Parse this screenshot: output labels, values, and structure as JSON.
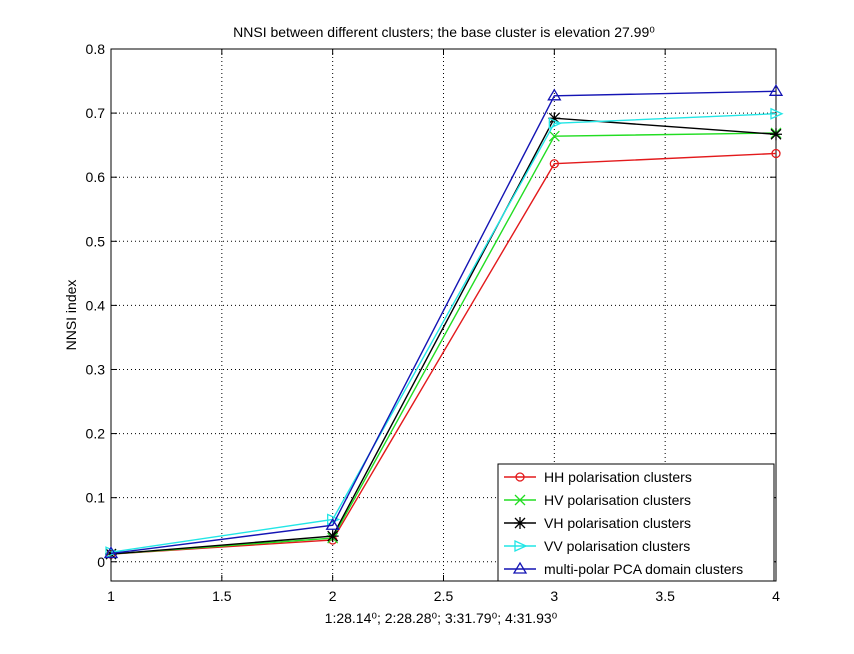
{
  "chart_data": {
    "type": "line",
    "title": "NNSI between different clusters; the base cluster is elevation 27.99⁰",
    "xlabel": "1:28.14⁰; 2:28.28⁰; 3:31.79⁰; 4:31.93⁰",
    "ylabel": "NNSI index",
    "x": [
      1,
      2,
      3,
      4
    ],
    "xlim": [
      1,
      4
    ],
    "ylim": [
      -0.03,
      0.8
    ],
    "xticks": [
      1,
      1.5,
      2,
      2.5,
      3,
      3.5,
      4
    ],
    "yticks": [
      0,
      0.1,
      0.2,
      0.3,
      0.4,
      0.5,
      0.6,
      0.7,
      0.8
    ],
    "xtick_labels": [
      "1",
      "1.5",
      "2",
      "2.5",
      "3",
      "3.5",
      "4"
    ],
    "ytick_labels": [
      "0",
      "0.1",
      "0.2",
      "0.3",
      "0.4",
      "0.5",
      "0.6",
      "0.7",
      "0.8"
    ],
    "grid": true,
    "legend_position": "bottom-right",
    "series": [
      {
        "name": "HH polarisation clusters",
        "color": "#e31a1c",
        "marker": "circle",
        "values": [
          0.012,
          0.034,
          0.621,
          0.637
        ]
      },
      {
        "name": "HV polarisation clusters",
        "color": "#22dd22",
        "marker": "x",
        "values": [
          0.012,
          0.037,
          0.664,
          0.669
        ]
      },
      {
        "name": "VH polarisation clusters",
        "color": "#000000",
        "marker": "star",
        "values": [
          0.012,
          0.04,
          0.692,
          0.667
        ]
      },
      {
        "name": "VV polarisation clusters",
        "color": "#22e6e6",
        "marker": "triangle-right",
        "values": [
          0.015,
          0.066,
          0.684,
          0.699
        ]
      },
      {
        "name": "multi-polar PCA domain clusters",
        "color": "#1414b4",
        "marker": "triangle-up",
        "values": [
          0.013,
          0.057,
          0.727,
          0.734
        ]
      }
    ]
  }
}
